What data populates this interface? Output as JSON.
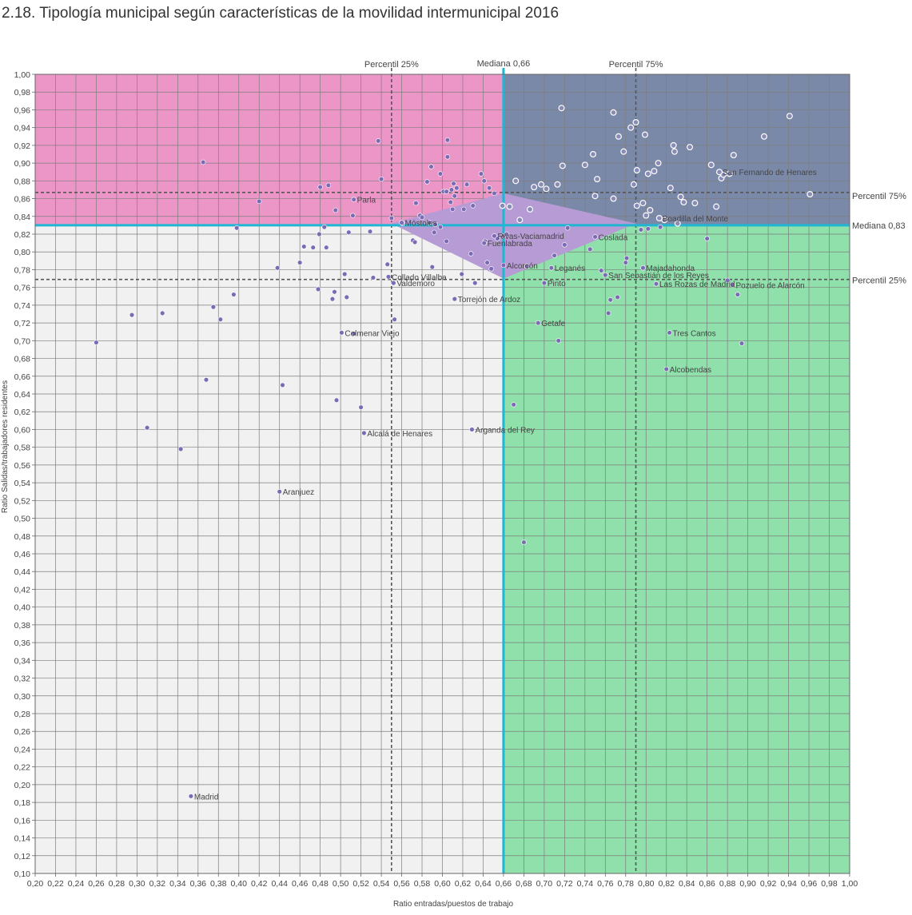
{
  "title": "2.18. Tipología municipal según características de la movilidad intermunicipal 2016",
  "chart_data": {
    "type": "scatter",
    "xlabel": "Ratio entradas/puestos de trabajo",
    "ylabel": "Ratio Salidas/trabajadores residentes",
    "xlim": [
      0.2,
      1.0
    ],
    "ylim": [
      0.1,
      1.0
    ],
    "grid": true,
    "x_ticks": [
      "0,20",
      "0,22",
      "0,24",
      "0,26",
      "0,28",
      "0,30",
      "0,32",
      "0,34",
      "0,36",
      "0,38",
      "0,40",
      "0,42",
      "0,44",
      "0,46",
      "0,48",
      "0,50",
      "0,52",
      "0,54",
      "0,56",
      "0,58",
      "0,60",
      "0,62",
      "0,64",
      "0,66",
      "0,68",
      "0,70",
      "0,72",
      "0,74",
      "0,76",
      "0,78",
      "0,80",
      "0,82",
      "0,84",
      "0,86",
      "0,88",
      "0,90",
      "0,92",
      "0,94",
      "0,96",
      "0,98",
      "1,00"
    ],
    "y_ticks": [
      "0,10",
      "0,12",
      "0,14",
      "0,16",
      "0,18",
      "0,20",
      "0,22",
      "0,24",
      "0,26",
      "0,28",
      "0,30",
      "0,32",
      "0,34",
      "0,36",
      "0,38",
      "0,40",
      "0,42",
      "0,44",
      "0,46",
      "0,48",
      "0,50",
      "0,52",
      "0,54",
      "0,56",
      "0,58",
      "0,60",
      "0,62",
      "0,64",
      "0,66",
      "0,68",
      "0,70",
      "0,72",
      "0,74",
      "0,76",
      "0,78",
      "0,80",
      "0,82",
      "0,84",
      "0,86",
      "0,88",
      "0,90",
      "0,92",
      "0,94",
      "0,96",
      "0,98",
      "1,00"
    ],
    "colors": {
      "top_left": "#ec96c8",
      "top_right": "#7b89a9",
      "bottom_left": "#f1f1f1",
      "bottom_right": "#8fe0aa",
      "median_line": "#1fb6d3",
      "diamond": "#b79bd4",
      "point": "#7b6bb5"
    },
    "reference_lines": {
      "x_percentile_25": {
        "label": "Percentil 25%",
        "value": 0.55
      },
      "x_median": {
        "label": "Mediana 0,66",
        "value": 0.66
      },
      "x_percentile_75": {
        "label": "Percentil 75%",
        "value": 0.79
      },
      "y_percentile_75": {
        "label": "Percentil 75%",
        "value": 0.867
      },
      "y_median": {
        "label": "Mediana 0,83",
        "value": 0.83
      },
      "y_percentile_25": {
        "label": "Percentil 25%",
        "value": 0.769
      }
    },
    "highlight_region": {
      "vertices": [
        [
          0.55,
          0.832
        ],
        [
          0.66,
          0.866
        ],
        [
          0.79,
          0.832
        ],
        [
          0.66,
          0.77
        ]
      ]
    },
    "labeled_points": [
      {
        "name": "Madrid",
        "x": 0.353,
        "y": 0.187
      },
      {
        "name": "Aranjuez",
        "x": 0.44,
        "y": 0.53
      },
      {
        "name": "Alcalá de Henares",
        "x": 0.523,
        "y": 0.596
      },
      {
        "name": "Arganda del Rey",
        "x": 0.629,
        "y": 0.6
      },
      {
        "name": "Colmenar Viejo",
        "x": 0.501,
        "y": 0.709
      },
      {
        "name": "Torrejón de Ardoz",
        "x": 0.612,
        "y": 0.747
      },
      {
        "name": "Getafe",
        "x": 0.694,
        "y": 0.72
      },
      {
        "name": "Tres Cantos",
        "x": 0.823,
        "y": 0.709
      },
      {
        "name": "Alcobendas",
        "x": 0.82,
        "y": 0.668
      },
      {
        "name": "Collado Villalba",
        "x": 0.547,
        "y": 0.772
      },
      {
        "name": "Valdemoro",
        "x": 0.552,
        "y": 0.765
      },
      {
        "name": "Parla",
        "x": 0.513,
        "y": 0.859
      },
      {
        "name": "Móstoles",
        "x": 0.56,
        "y": 0.833
      },
      {
        "name": "Fuenlabrada",
        "x": 0.641,
        "y": 0.81
      },
      {
        "name": "Rivas-Vaciamadrid",
        "x": 0.651,
        "y": 0.818
      },
      {
        "name": "Alcorcón",
        "x": 0.66,
        "y": 0.785
      },
      {
        "name": "Leganés",
        "x": 0.707,
        "y": 0.782
      },
      {
        "name": "Pinto",
        "x": 0.7,
        "y": 0.765
      },
      {
        "name": "Coslada",
        "x": 0.75,
        "y": 0.817
      },
      {
        "name": "Majadahonda",
        "x": 0.797,
        "y": 0.782
      },
      {
        "name": "San Sebastián de los Reyes",
        "x": 0.76,
        "y": 0.774
      },
      {
        "name": "Las Rozas de Madrid",
        "x": 0.81,
        "y": 0.764
      },
      {
        "name": "Pozuelo de Alarcón",
        "x": 0.885,
        "y": 0.763
      },
      {
        "name": "Boadilla del Monte",
        "x": 0.813,
        "y": 0.838
      },
      {
        "name": "San Fernando de Henares",
        "x": 0.872,
        "y": 0.89
      }
    ],
    "points": [
      [
        0.26,
        0.698
      ],
      [
        0.295,
        0.729
      ],
      [
        0.31,
        0.602
      ],
      [
        0.325,
        0.731
      ],
      [
        0.343,
        0.578
      ],
      [
        0.365,
        0.901
      ],
      [
        0.368,
        0.656
      ],
      [
        0.375,
        0.738
      ],
      [
        0.382,
        0.724
      ],
      [
        0.395,
        0.752
      ],
      [
        0.398,
        0.827
      ],
      [
        0.42,
        0.857
      ],
      [
        0.438,
        0.782
      ],
      [
        0.443,
        0.65
      ],
      [
        0.46,
        0.788
      ],
      [
        0.464,
        0.806
      ],
      [
        0.473,
        0.805
      ],
      [
        0.478,
        0.758
      ],
      [
        0.479,
        0.82
      ],
      [
        0.48,
        0.873
      ],
      [
        0.484,
        0.828
      ],
      [
        0.486,
        0.805
      ],
      [
        0.488,
        0.875
      ],
      [
        0.492,
        0.747
      ],
      [
        0.494,
        0.755
      ],
      [
        0.495,
        0.847
      ],
      [
        0.496,
        0.633
      ],
      [
        0.504,
        0.775
      ],
      [
        0.506,
        0.749
      ],
      [
        0.508,
        0.822
      ],
      [
        0.512,
        0.841
      ],
      [
        0.513,
        0.708
      ],
      [
        0.52,
        0.625
      ],
      [
        0.529,
        0.823
      ],
      [
        0.532,
        0.771
      ],
      [
        0.537,
        0.925
      ],
      [
        0.54,
        0.882
      ],
      [
        0.546,
        0.786
      ],
      [
        0.55,
        0.838
      ],
      [
        0.553,
        0.724
      ],
      [
        0.561,
        0.832
      ],
      [
        0.571,
        0.813
      ],
      [
        0.573,
        0.811
      ],
      [
        0.574,
        0.855
      ],
      [
        0.578,
        0.841
      ],
      [
        0.58,
        0.839
      ],
      [
        0.585,
        0.879
      ],
      [
        0.587,
        0.833
      ],
      [
        0.589,
        0.896
      ],
      [
        0.59,
        0.783
      ],
      [
        0.592,
        0.822
      ],
      [
        0.593,
        0.831
      ],
      [
        0.598,
        0.828
      ],
      [
        0.598,
        0.888
      ],
      [
        0.601,
        0.868
      ],
      [
        0.604,
        0.868
      ],
      [
        0.604,
        0.812
      ],
      [
        0.605,
        0.926
      ],
      [
        0.605,
        0.907
      ],
      [
        0.608,
        0.856
      ],
      [
        0.609,
        0.87
      ],
      [
        0.61,
        0.848
      ],
      [
        0.611,
        0.877
      ],
      [
        0.612,
        0.863
      ],
      [
        0.614,
        0.872
      ],
      [
        0.619,
        0.775
      ],
      [
        0.621,
        0.848
      ],
      [
        0.624,
        0.876
      ],
      [
        0.628,
        0.798
      ],
      [
        0.63,
        0.852
      ],
      [
        0.632,
        0.765
      ],
      [
        0.638,
        0.888
      ],
      [
        0.641,
        0.88
      ],
      [
        0.642,
        0.812
      ],
      [
        0.644,
        0.788
      ],
      [
        0.646,
        0.872
      ],
      [
        0.648,
        0.781
      ],
      [
        0.651,
        0.866
      ],
      [
        0.654,
        0.815
      ],
      [
        0.659,
        0.852
      ],
      [
        0.66,
        0.818
      ],
      [
        0.663,
        0.82
      ],
      [
        0.666,
        0.851
      ],
      [
        0.67,
        0.628
      ],
      [
        0.672,
        0.88
      ],
      [
        0.676,
        0.836
      ],
      [
        0.68,
        0.473
      ],
      [
        0.683,
        0.784
      ],
      [
        0.686,
        0.848
      ],
      [
        0.69,
        0.873
      ],
      [
        0.697,
        0.876
      ],
      [
        0.702,
        0.871
      ],
      [
        0.71,
        0.796
      ],
      [
        0.713,
        0.876
      ],
      [
        0.714,
        0.7
      ],
      [
        0.717,
        0.962
      ],
      [
        0.718,
        0.897
      ],
      [
        0.72,
        0.808
      ],
      [
        0.723,
        0.827
      ],
      [
        0.74,
        0.898
      ],
      [
        0.745,
        0.803
      ],
      [
        0.748,
        0.91
      ],
      [
        0.75,
        0.863
      ],
      [
        0.752,
        0.882
      ],
      [
        0.756,
        0.779
      ],
      [
        0.763,
        0.731
      ],
      [
        0.765,
        0.746
      ],
      [
        0.768,
        0.957
      ],
      [
        0.768,
        0.86
      ],
      [
        0.772,
        0.749
      ],
      [
        0.773,
        0.93
      ],
      [
        0.778,
        0.913
      ],
      [
        0.78,
        0.788
      ],
      [
        0.781,
        0.793
      ],
      [
        0.785,
        0.94
      ],
      [
        0.788,
        0.876
      ],
      [
        0.79,
        0.946
      ],
      [
        0.791,
        0.892
      ],
      [
        0.791,
        0.852
      ],
      [
        0.795,
        0.825
      ],
      [
        0.797,
        0.855
      ],
      [
        0.799,
        0.932
      ],
      [
        0.8,
        0.841
      ],
      [
        0.802,
        0.888
      ],
      [
        0.802,
        0.826
      ],
      [
        0.804,
        0.847
      ],
      [
        0.808,
        0.891
      ],
      [
        0.812,
        0.9
      ],
      [
        0.814,
        0.828
      ],
      [
        0.818,
        0.836
      ],
      [
        0.824,
        0.872
      ],
      [
        0.827,
        0.92
      ],
      [
        0.828,
        0.913
      ],
      [
        0.831,
        0.832
      ],
      [
        0.834,
        0.862
      ],
      [
        0.837,
        0.856
      ],
      [
        0.843,
        0.918
      ],
      [
        0.848,
        0.855
      ],
      [
        0.86,
        0.815
      ],
      [
        0.864,
        0.898
      ],
      [
        0.869,
        0.851
      ],
      [
        0.874,
        0.883
      ],
      [
        0.876,
        0.887
      ],
      [
        0.88,
        0.768
      ],
      [
        0.882,
        0.888
      ],
      [
        0.886,
        0.909
      ],
      [
        0.89,
        0.752
      ],
      [
        0.894,
        0.697
      ],
      [
        0.916,
        0.93
      ],
      [
        0.941,
        0.953
      ],
      [
        0.961,
        0.865
      ]
    ]
  }
}
